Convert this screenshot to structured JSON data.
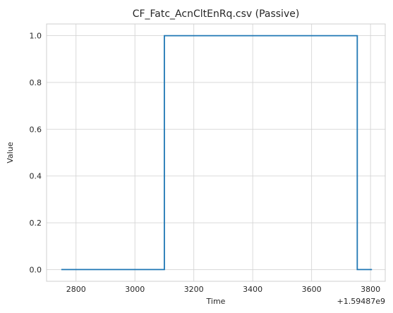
{
  "chart_data": {
    "type": "line",
    "title": "CF_Fatc_AcnCltEnRq.csv (Passive)",
    "xlabel": "Time",
    "ylabel": "Value",
    "x_offset_label": "+1.59487e9",
    "xlim": [
      2700,
      3850
    ],
    "ylim": [
      -0.05,
      1.05
    ],
    "x_ticks": [
      2800,
      3000,
      3200,
      3400,
      3600,
      3800
    ],
    "y_ticks": [
      0.0,
      0.2,
      0.4,
      0.6,
      0.8,
      1.0
    ],
    "y_tick_labels": [
      "0.0",
      "0.2",
      "0.4",
      "0.6",
      "0.8",
      "1.0"
    ],
    "grid": true,
    "drawstyle": "steps-post",
    "series": [
      {
        "color": "#1f77b4",
        "x": [
          2750,
          3100,
          3755,
          3805
        ],
        "y": [
          0,
          1,
          0,
          0
        ]
      }
    ]
  }
}
